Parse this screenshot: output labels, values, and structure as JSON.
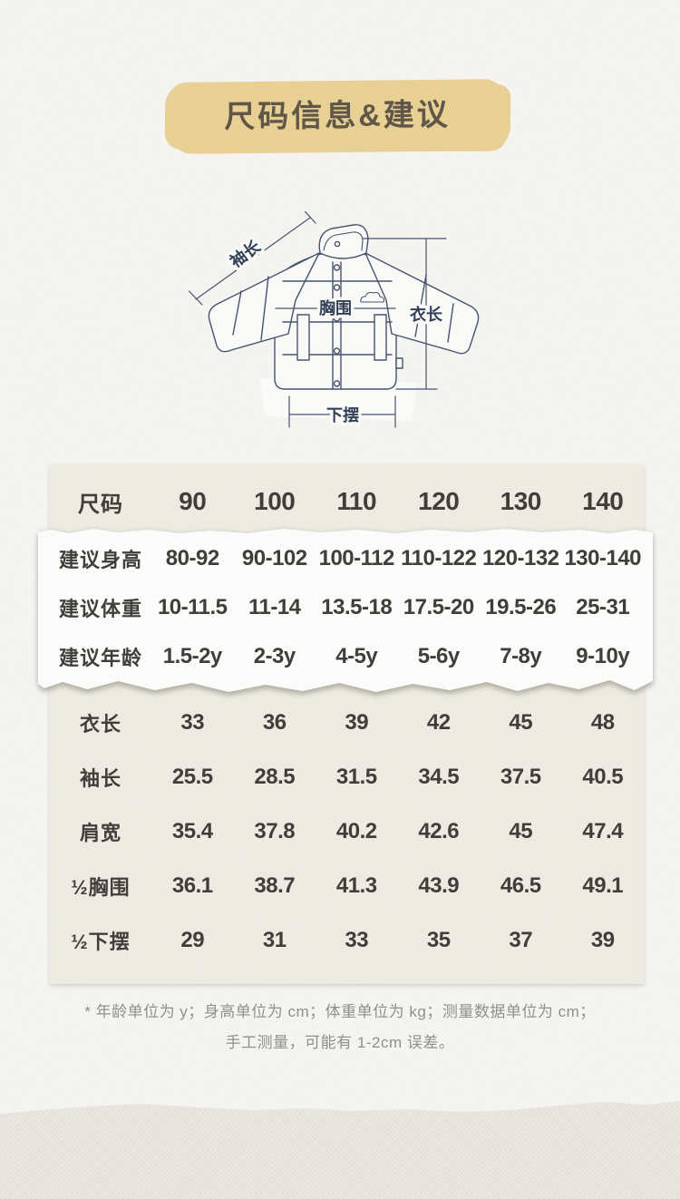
{
  "header": {
    "title": "尺码信息&建议"
  },
  "diagram": {
    "labels": {
      "sleeve_length": "袖长",
      "chest": "胸围",
      "garment_length": "衣长",
      "hem": "下摆"
    }
  },
  "size_table": {
    "header_row": {
      "label": "尺码",
      "sizes": [
        "90",
        "100",
        "110",
        "120",
        "130",
        "140"
      ]
    },
    "suggestion_rows": [
      {
        "label": "建议身高",
        "values": [
          "80-92",
          "90-102",
          "100-112",
          "110-122",
          "120-132",
          "130-140"
        ]
      },
      {
        "label": "建议体重",
        "values": [
          "10-11.5",
          "11-14",
          "13.5-18",
          "17.5-20",
          "19.5-26",
          "25-31"
        ]
      },
      {
        "label": "建议年龄",
        "values": [
          "1.5-2y",
          "2-3y",
          "4-5y",
          "5-6y",
          "7-8y",
          "9-10y"
        ]
      }
    ],
    "measurement_rows": [
      {
        "label": "衣长",
        "values": [
          "33",
          "36",
          "39",
          "42",
          "45",
          "48"
        ]
      },
      {
        "label": "袖长",
        "values": [
          "25.5",
          "28.5",
          "31.5",
          "34.5",
          "37.5",
          "40.5"
        ]
      },
      {
        "label": "肩宽",
        "values": [
          "35.4",
          "37.8",
          "40.2",
          "42.6",
          "45",
          "47.4"
        ]
      },
      {
        "label": "½胸围",
        "values": [
          "36.1",
          "38.7",
          "41.3",
          "43.9",
          "46.5",
          "49.1"
        ]
      },
      {
        "label": "½下摆",
        "values": [
          "29",
          "31",
          "33",
          "35",
          "37",
          "39"
        ]
      }
    ]
  },
  "footnote": {
    "line1": "* 年龄单位为 y；身高单位为 cm；体重单位为 kg；测量数据单位为 cm；",
    "line2": "手工测量，可能有 1-2cm 误差。"
  },
  "colors": {
    "page_bg": "#f6f5f2",
    "title_badge_bg": "#ead193",
    "title_text": "#5d5445",
    "panel_bg": "#efece3",
    "strip_bg": "#fdfdfc",
    "table_text": "#3c3b38",
    "footnote_text": "#8f8e8a",
    "line_art": "#43526b",
    "bottom_band_bg": "#e9e6e0"
  }
}
